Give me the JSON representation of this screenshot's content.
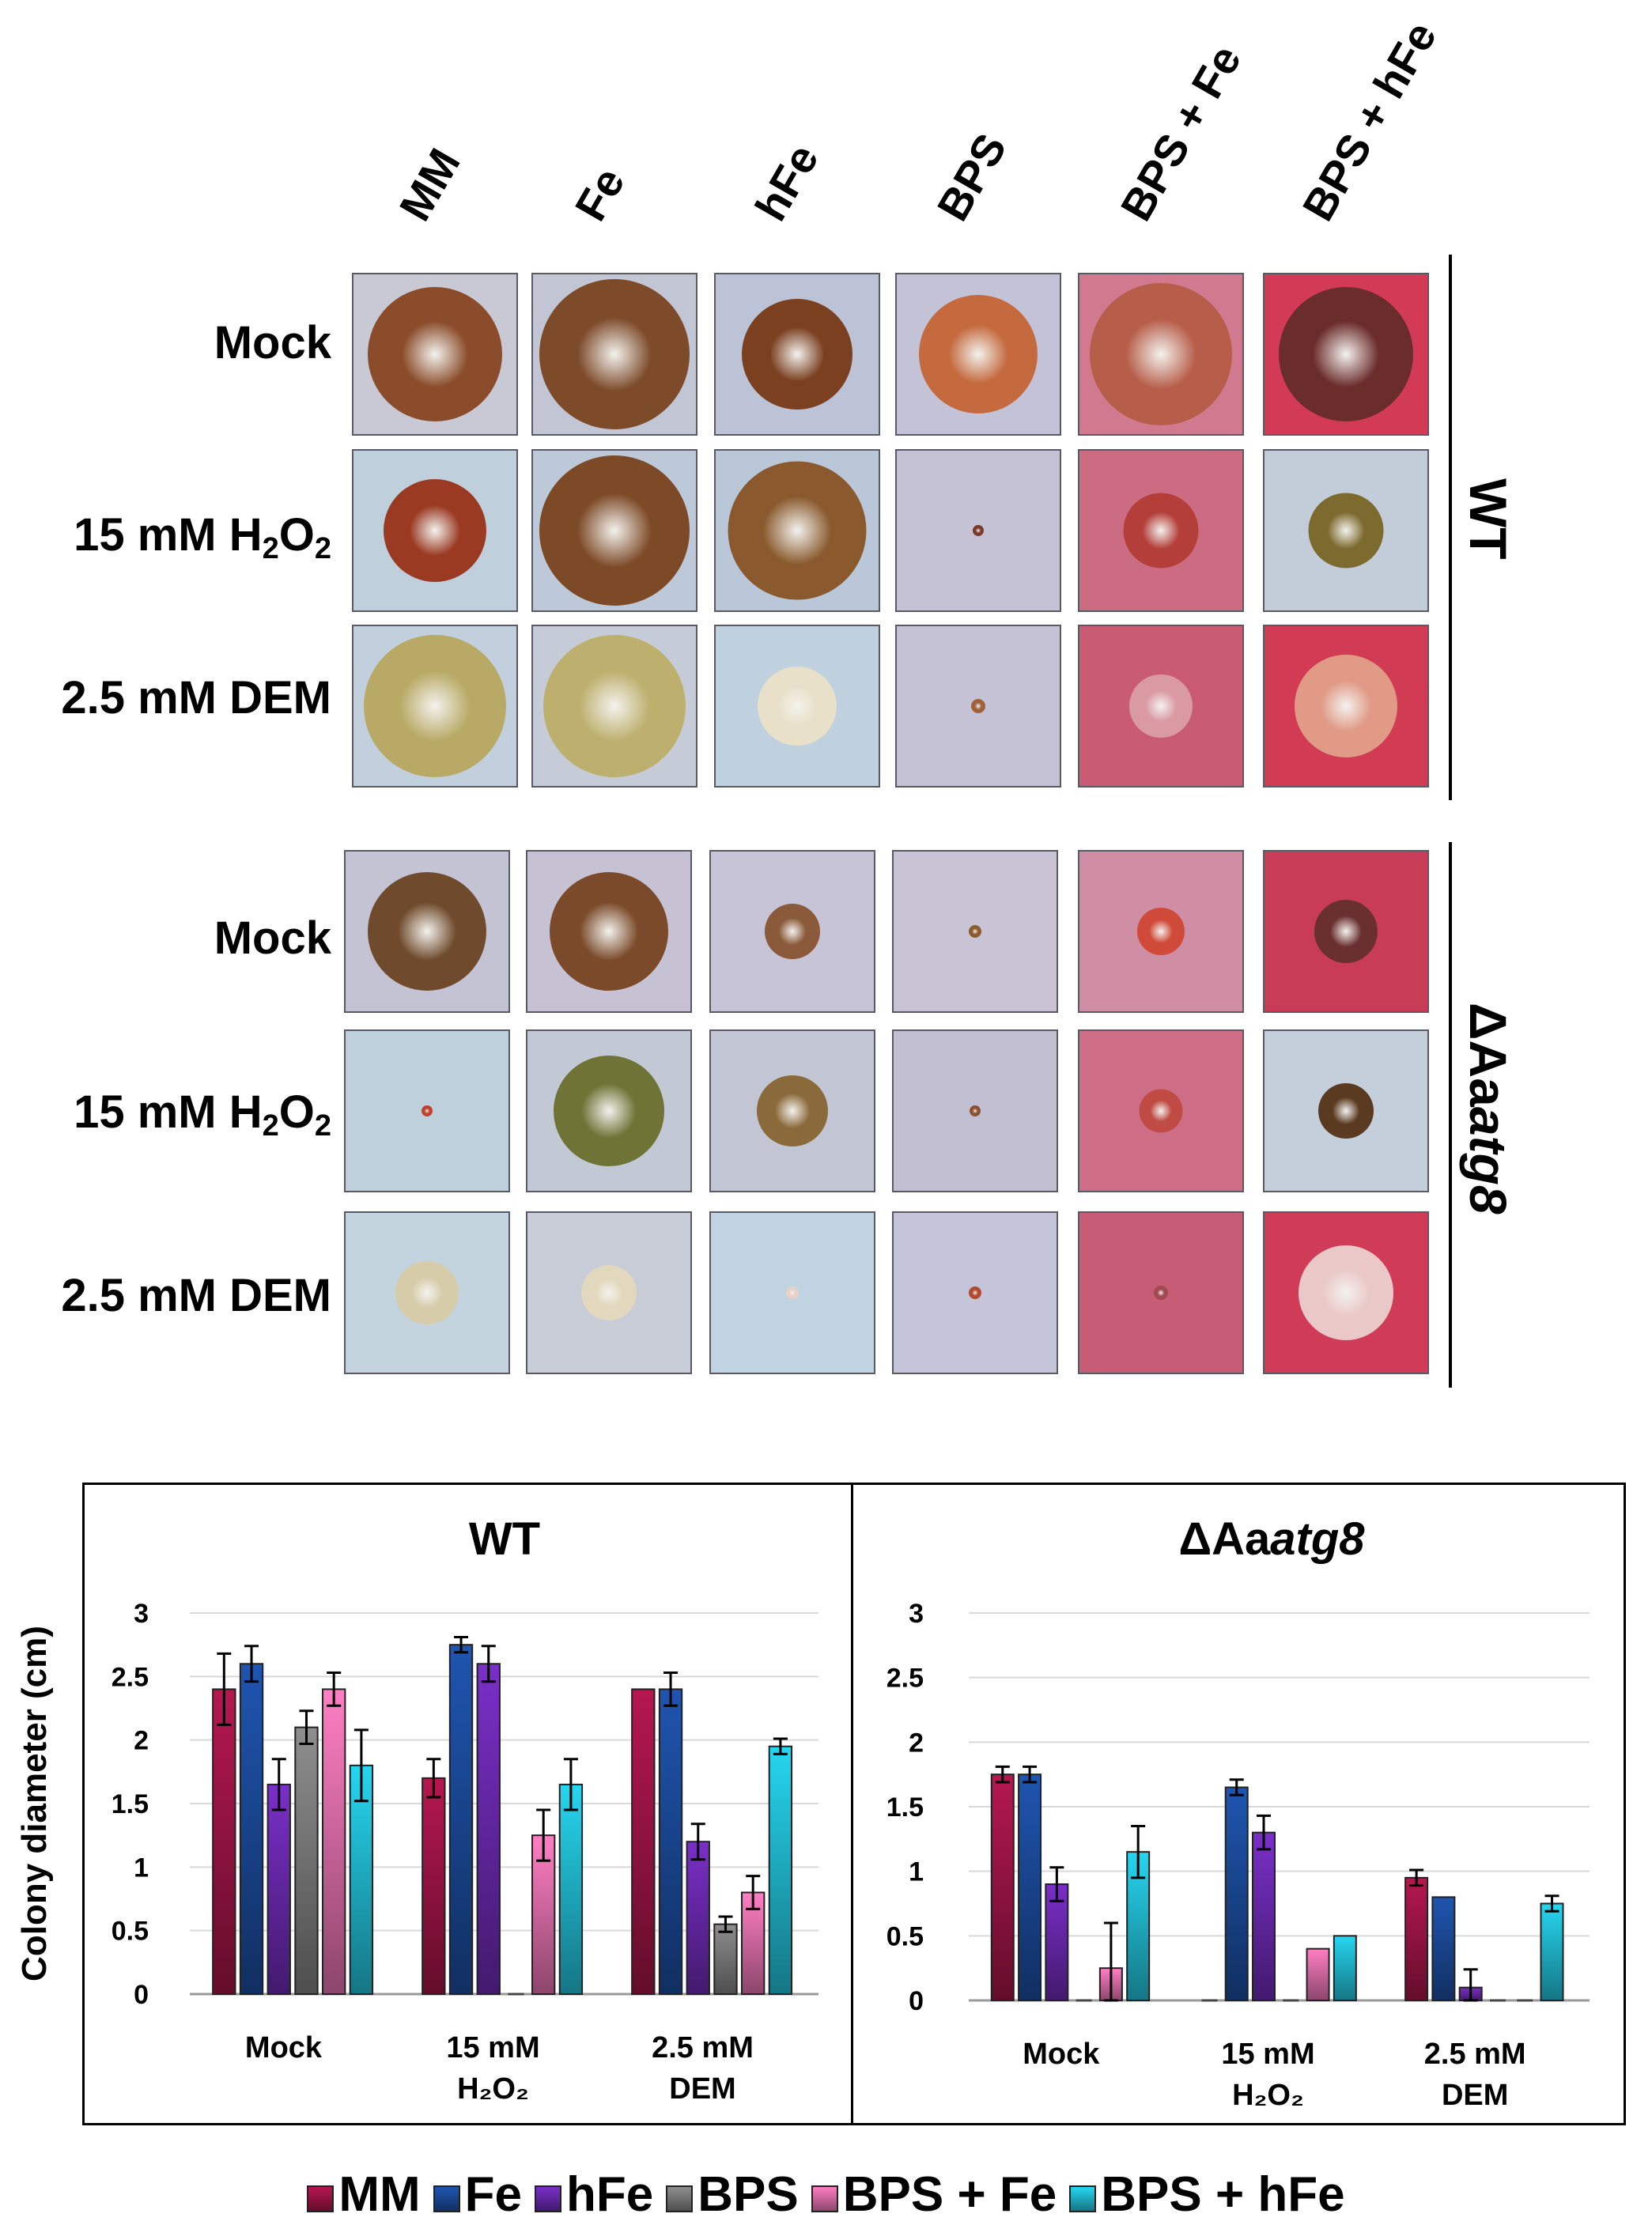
{
  "colors": {
    "MM": "#b5184f",
    "Fe": "#1f55b0",
    "hFe": "#7a2fc8",
    "BPS": "#8e8e8e",
    "BPS + Fe": "#ff7fc4",
    "BPS + hFe": "#26d6f0"
  },
  "columns": [
    "MM",
    "Fe",
    "hFe",
    "BPS",
    "BPS + Fe",
    "BPS + hFe"
  ],
  "wt_block": {
    "strain_label": "WT",
    "rows": [
      {
        "label": "Mock"
      },
      {
        "label_prefix": "15 mM H",
        "sub1": "2",
        "label_mid": "O",
        "sub2": "2"
      },
      {
        "label": "2.5 mM DEM"
      }
    ]
  },
  "mutant_block": {
    "strain_label_prefix": "ΔAa",
    "strain_label_italic": "atg8",
    "rows": [
      {
        "label": "Mock"
      },
      {
        "label_prefix": "15 mM H",
        "sub1": "2",
        "label_mid": "O",
        "sub2": "2"
      },
      {
        "label": "2.5 mM DEM"
      }
    ]
  },
  "chart_data": [
    {
      "type": "bar",
      "title": "WT",
      "ylabel": "Colony diameter (cm)",
      "ylim": [
        0,
        3
      ],
      "yticks": [
        "0",
        "0.5",
        "1",
        "1.5",
        "2",
        "2.5",
        "3"
      ],
      "categories": [
        "Mock",
        "15 mM H2O2",
        "2.5 mM DEM"
      ],
      "category_labels": [
        [
          "Mock"
        ],
        [
          "15 mM",
          "H₂O₂"
        ],
        [
          "2.5 mM",
          "DEM"
        ]
      ],
      "series": [
        {
          "name": "MM",
          "values": [
            2.4,
            1.7,
            2.4
          ],
          "errors": [
            0.28,
            0.15,
            0
          ]
        },
        {
          "name": "Fe",
          "values": [
            2.6,
            2.75,
            2.4
          ],
          "errors": [
            0.14,
            0.06,
            0.13
          ]
        },
        {
          "name": "hFe",
          "values": [
            1.65,
            2.6,
            1.2
          ],
          "errors": [
            0.2,
            0.14,
            0.14
          ]
        },
        {
          "name": "BPS",
          "values": [
            2.1,
            0,
            0.55
          ],
          "errors": [
            0.13,
            0,
            0.06
          ]
        },
        {
          "name": "BPS + Fe",
          "values": [
            2.4,
            1.25,
            0.8
          ],
          "errors": [
            0.13,
            0.2,
            0.13
          ]
        },
        {
          "name": "BPS + hFe",
          "values": [
            1.8,
            1.65,
            1.95
          ],
          "errors": [
            0.28,
            0.2,
            0.06
          ]
        }
      ]
    },
    {
      "type": "bar",
      "title_prefix": "ΔAa",
      "title_italic": "atg8",
      "ylim": [
        0,
        3
      ],
      "yticks": [
        "0",
        "0.5",
        "1",
        "1.5",
        "2",
        "2.5",
        "3"
      ],
      "categories": [
        "Mock",
        "15 mM H2O2",
        "2.5 mM DEM"
      ],
      "category_labels": [
        [
          "Mock"
        ],
        [
          "15 mM",
          "H₂O₂"
        ],
        [
          "2.5 mM",
          "DEM"
        ]
      ],
      "series": [
        {
          "name": "MM",
          "values": [
            1.75,
            0,
            0.95
          ],
          "errors": [
            0.06,
            0,
            0.06
          ]
        },
        {
          "name": "Fe",
          "values": [
            1.75,
            1.65,
            0.8
          ],
          "errors": [
            0.06,
            0.06,
            0
          ]
        },
        {
          "name": "hFe",
          "values": [
            0.9,
            1.3,
            0.1
          ],
          "errors": [
            0.13,
            0.13,
            0.14
          ]
        },
        {
          "name": "BPS",
          "values": [
            0,
            0,
            0
          ],
          "errors": [
            0,
            0,
            0
          ]
        },
        {
          "name": "BPS + Fe",
          "values": [
            0.25,
            0.4,
            0
          ],
          "errors": [
            0.35,
            0,
            0
          ]
        },
        {
          "name": "BPS + hFe",
          "values": [
            1.15,
            0.5,
            0.75
          ],
          "errors": [
            0.2,
            0,
            0.06
          ]
        }
      ]
    }
  ],
  "legend": [
    "MM",
    "Fe",
    "hFe",
    "BPS",
    "BPS + Fe",
    "BPS + hFe"
  ]
}
